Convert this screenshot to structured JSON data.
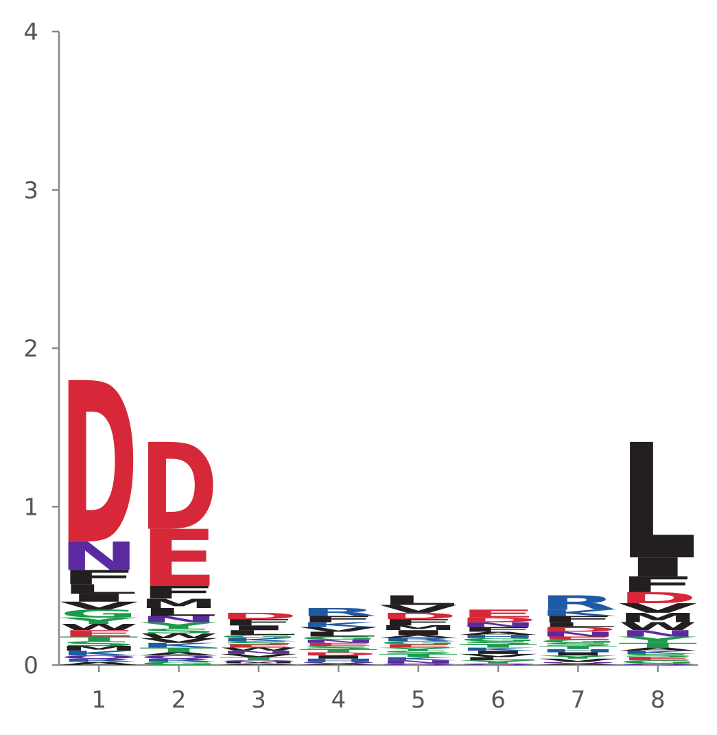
{
  "chart_data": {
    "type": "sequence-logo",
    "title": "",
    "xlabel": "",
    "ylabel": "",
    "ylim": [
      0,
      4
    ],
    "y_ticks": [
      "0",
      "1",
      "2",
      "3",
      "4"
    ],
    "x_ticks": [
      "1",
      "2",
      "3",
      "4",
      "5",
      "6",
      "7",
      "8"
    ],
    "colors": {
      "acidic": "#d62839",
      "basic": "#1f5aa5",
      "polar": "#5b2aa0",
      "neutral": "#1a9c4a",
      "hydrophobic": "#231f20"
    },
    "positions": [
      {
        "position": "1",
        "letters": [
          {
            "letter": "D",
            "height": 1.02,
            "color": "#d62839"
          },
          {
            "letter": "N",
            "height": 0.18,
            "color": "#5b2aa0"
          },
          {
            "letter": "F",
            "height": 0.09,
            "color": "#231f20"
          },
          {
            "letter": "L",
            "height": 0.06,
            "color": "#231f20"
          },
          {
            "letter": "G",
            "height": 0.05,
            "color": "#1a9c4a"
          },
          {
            "letter": "V",
            "height": 0.05,
            "color": "#231f20"
          },
          {
            "letter": "I",
            "height": 0.05,
            "color": "#231f20"
          },
          {
            "letter": "E",
            "height": 0.04,
            "color": "#d62839"
          },
          {
            "letter": "W",
            "height": 0.04,
            "color": "#231f20"
          },
          {
            "letter": "Y",
            "height": 0.04,
            "color": "#1a9c4a"
          },
          {
            "letter": "K",
            "height": 0.03,
            "color": "#1f5aa5"
          },
          {
            "letter": "M",
            "height": 0.03,
            "color": "#231f20"
          },
          {
            "letter": "S",
            "height": 0.03,
            "color": "#1a9c4a"
          },
          {
            "letter": "T",
            "height": 0.03,
            "color": "#1a9c4a"
          },
          {
            "letter": "A",
            "height": 0.02,
            "color": "#231f20"
          },
          {
            "letter": "R",
            "height": 0.02,
            "color": "#1f5aa5"
          },
          {
            "letter": "Q",
            "height": 0.02,
            "color": "#5b2aa0"
          }
        ]
      },
      {
        "position": "2",
        "letters": [
          {
            "letter": "D",
            "height": 0.55,
            "color": "#d62839"
          },
          {
            "letter": "E",
            "height": 0.36,
            "color": "#d62839"
          },
          {
            "letter": "F",
            "height": 0.08,
            "color": "#231f20"
          },
          {
            "letter": "M",
            "height": 0.06,
            "color": "#231f20"
          },
          {
            "letter": "L",
            "height": 0.05,
            "color": "#231f20"
          },
          {
            "letter": "Y",
            "height": 0.04,
            "color": "#1a9c4a"
          },
          {
            "letter": "N",
            "height": 0.04,
            "color": "#5b2aa0"
          },
          {
            "letter": "T",
            "height": 0.03,
            "color": "#1a9c4a"
          },
          {
            "letter": "K",
            "height": 0.03,
            "color": "#1f5aa5"
          },
          {
            "letter": "V",
            "height": 0.03,
            "color": "#231f20"
          },
          {
            "letter": "W",
            "height": 0.03,
            "color": "#231f20"
          },
          {
            "letter": "S",
            "height": 0.03,
            "color": "#1a9c4a"
          },
          {
            "letter": "G",
            "height": 0.02,
            "color": "#1a9c4a"
          },
          {
            "letter": "R",
            "height": 0.02,
            "color": "#1f5aa5"
          },
          {
            "letter": "Q",
            "height": 0.02,
            "color": "#5b2aa0"
          },
          {
            "letter": "A",
            "height": 0.02,
            "color": "#231f20"
          }
        ]
      },
      {
        "position": "3",
        "letters": [
          {
            "letter": "F",
            "height": 0.04,
            "color": "#231f20"
          },
          {
            "letter": "D",
            "height": 0.04,
            "color": "#d62839"
          },
          {
            "letter": "L",
            "height": 0.03,
            "color": "#231f20"
          },
          {
            "letter": "I",
            "height": 0.03,
            "color": "#231f20"
          },
          {
            "letter": "T",
            "height": 0.02,
            "color": "#1a9c4a"
          },
          {
            "letter": "V",
            "height": 0.02,
            "color": "#231f20"
          },
          {
            "letter": "N",
            "height": 0.02,
            "color": "#5b2aa0"
          },
          {
            "letter": "W",
            "height": 0.02,
            "color": "#231f20"
          },
          {
            "letter": "E",
            "height": 0.02,
            "color": "#d62839"
          },
          {
            "letter": "S",
            "height": 0.02,
            "color": "#1a9c4a"
          },
          {
            "letter": "K",
            "height": 0.02,
            "color": "#1f5aa5"
          },
          {
            "letter": "G",
            "height": 0.02,
            "color": "#1a9c4a"
          },
          {
            "letter": "A",
            "height": 0.01,
            "color": "#231f20"
          },
          {
            "letter": "M",
            "height": 0.01,
            "color": "#231f20"
          },
          {
            "letter": "Q",
            "height": 0.01,
            "color": "#5b2aa0"
          }
        ]
      },
      {
        "position": "4",
        "letters": [
          {
            "letter": "R",
            "height": 0.05,
            "color": "#1f5aa5"
          },
          {
            "letter": "F",
            "height": 0.04,
            "color": "#231f20"
          },
          {
            "letter": "L",
            "height": 0.03,
            "color": "#231f20"
          },
          {
            "letter": "V",
            "height": 0.03,
            "color": "#231f20"
          },
          {
            "letter": "K",
            "height": 0.03,
            "color": "#1f5aa5"
          },
          {
            "letter": "H",
            "height": 0.02,
            "color": "#1f5aa5"
          },
          {
            "letter": "I",
            "height": 0.02,
            "color": "#231f20"
          },
          {
            "letter": "D",
            "height": 0.02,
            "color": "#d62839"
          },
          {
            "letter": "T",
            "height": 0.02,
            "color": "#1a9c4a"
          },
          {
            "letter": "S",
            "height": 0.02,
            "color": "#1a9c4a"
          },
          {
            "letter": "E",
            "height": 0.02,
            "color": "#d62839"
          },
          {
            "letter": "N",
            "height": 0.02,
            "color": "#5b2aa0"
          },
          {
            "letter": "G",
            "height": 0.02,
            "color": "#1a9c4a"
          },
          {
            "letter": "A",
            "height": 0.01,
            "color": "#231f20"
          },
          {
            "letter": "Q",
            "height": 0.01,
            "color": "#5b2aa0"
          }
        ]
      },
      {
        "position": "5",
        "letters": [
          {
            "letter": "F",
            "height": 0.04,
            "color": "#231f20"
          },
          {
            "letter": "L",
            "height": 0.06,
            "color": "#231f20"
          },
          {
            "letter": "V",
            "height": 0.05,
            "color": "#231f20"
          },
          {
            "letter": "I",
            "height": 0.03,
            "color": "#231f20"
          },
          {
            "letter": "D",
            "height": 0.04,
            "color": "#d62839"
          },
          {
            "letter": "M",
            "height": 0.03,
            "color": "#231f20"
          },
          {
            "letter": "N",
            "height": 0.02,
            "color": "#5b2aa0"
          },
          {
            "letter": "K",
            "height": 0.02,
            "color": "#1f5aa5"
          },
          {
            "letter": "T",
            "height": 0.02,
            "color": "#1a9c4a"
          },
          {
            "letter": "S",
            "height": 0.02,
            "color": "#1a9c4a"
          },
          {
            "letter": "Y",
            "height": 0.02,
            "color": "#1a9c4a"
          },
          {
            "letter": "E",
            "height": 0.02,
            "color": "#d62839"
          },
          {
            "letter": "G",
            "height": 0.02,
            "color": "#1a9c4a"
          },
          {
            "letter": "R",
            "height": 0.02,
            "color": "#1f5aa5"
          },
          {
            "letter": "A",
            "height": 0.02,
            "color": "#231f20"
          },
          {
            "letter": "Q",
            "height": 0.01,
            "color": "#5b2aa0"
          }
        ]
      },
      {
        "position": "6",
        "letters": [
          {
            "letter": "E",
            "height": 0.05,
            "color": "#d62839"
          },
          {
            "letter": "F",
            "height": 0.03,
            "color": "#231f20"
          },
          {
            "letter": "N",
            "height": 0.03,
            "color": "#5b2aa0"
          },
          {
            "letter": "D",
            "height": 0.03,
            "color": "#d62839"
          },
          {
            "letter": "Y",
            "height": 0.02,
            "color": "#1a9c4a"
          },
          {
            "letter": "L",
            "height": 0.02,
            "color": "#231f20"
          },
          {
            "letter": "V",
            "height": 0.02,
            "color": "#231f20"
          },
          {
            "letter": "I",
            "height": 0.02,
            "color": "#231f20"
          },
          {
            "letter": "K",
            "height": 0.02,
            "color": "#1f5aa5"
          },
          {
            "letter": "T",
            "height": 0.02,
            "color": "#1a9c4a"
          },
          {
            "letter": "S",
            "height": 0.02,
            "color": "#1a9c4a"
          },
          {
            "letter": "G",
            "height": 0.02,
            "color": "#1a9c4a"
          },
          {
            "letter": "H",
            "height": 0.02,
            "color": "#1f5aa5"
          },
          {
            "letter": "A",
            "height": 0.02,
            "color": "#231f20"
          },
          {
            "letter": "Q",
            "height": 0.01,
            "color": "#5b2aa0"
          }
        ]
      },
      {
        "position": "7",
        "letters": [
          {
            "letter": "R",
            "height": 0.09,
            "color": "#1f5aa5"
          },
          {
            "letter": "F",
            "height": 0.04,
            "color": "#231f20"
          },
          {
            "letter": "K",
            "height": 0.04,
            "color": "#1f5aa5"
          },
          {
            "letter": "N",
            "height": 0.03,
            "color": "#5b2aa0"
          },
          {
            "letter": "D",
            "height": 0.03,
            "color": "#d62839"
          },
          {
            "letter": "L",
            "height": 0.03,
            "color": "#231f20"
          },
          {
            "letter": "V",
            "height": 0.02,
            "color": "#231f20"
          },
          {
            "letter": "Y",
            "height": 0.02,
            "color": "#1a9c4a"
          },
          {
            "letter": "I",
            "height": 0.02,
            "color": "#231f20"
          },
          {
            "letter": "H",
            "height": 0.02,
            "color": "#1f5aa5"
          },
          {
            "letter": "T",
            "height": 0.02,
            "color": "#1a9c4a"
          },
          {
            "letter": "S",
            "height": 0.02,
            "color": "#1a9c4a"
          },
          {
            "letter": "G",
            "height": 0.02,
            "color": "#1a9c4a"
          },
          {
            "letter": "E",
            "height": 0.02,
            "color": "#d62839"
          },
          {
            "letter": "A",
            "height": 0.01,
            "color": "#231f20"
          },
          {
            "letter": "Q",
            "height": 0.01,
            "color": "#5b2aa0"
          }
        ]
      },
      {
        "position": "8",
        "letters": [
          {
            "letter": "L",
            "height": 0.73,
            "color": "#231f20"
          },
          {
            "letter": "I",
            "height": 0.12,
            "color": "#231f20"
          },
          {
            "letter": "F",
            "height": 0.1,
            "color": "#231f20"
          },
          {
            "letter": "D",
            "height": 0.07,
            "color": "#d62839"
          },
          {
            "letter": "M",
            "height": 0.06,
            "color": "#231f20"
          },
          {
            "letter": "V",
            "height": 0.06,
            "color": "#231f20"
          },
          {
            "letter": "W",
            "height": 0.05,
            "color": "#231f20"
          },
          {
            "letter": "Y",
            "height": 0.04,
            "color": "#1a9c4a"
          },
          {
            "letter": "N",
            "height": 0.04,
            "color": "#5b2aa0"
          },
          {
            "letter": "T",
            "height": 0.03,
            "color": "#1a9c4a"
          },
          {
            "letter": "G",
            "height": 0.02,
            "color": "#1a9c4a"
          },
          {
            "letter": "E",
            "height": 0.02,
            "color": "#d62839"
          },
          {
            "letter": "S",
            "height": 0.02,
            "color": "#1a9c4a"
          },
          {
            "letter": "K",
            "height": 0.02,
            "color": "#1f5aa5"
          },
          {
            "letter": "A",
            "height": 0.02,
            "color": "#231f20"
          },
          {
            "letter": "Q",
            "height": 0.01,
            "color": "#5b2aa0"
          }
        ]
      }
    ]
  }
}
